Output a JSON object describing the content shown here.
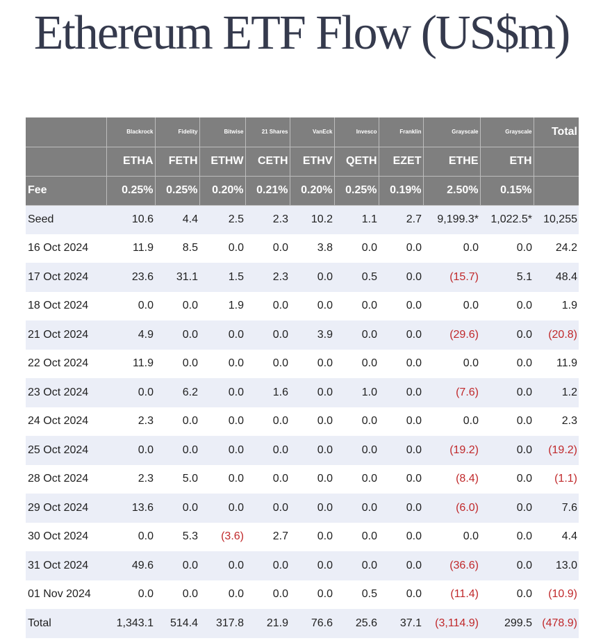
{
  "title": "Ethereum ETF Flow (US$m)",
  "header": {
    "issuers": [
      "Blackrock",
      "Fidelity",
      "Bitwise",
      "21 Shares",
      "VanEck",
      "Invesco",
      "Franklin",
      "Grayscale",
      "Grayscale"
    ],
    "total_label": "Total",
    "tickers": [
      "ETHA",
      "FETH",
      "ETHW",
      "CETH",
      "ETHV",
      "QETH",
      "EZET",
      "ETHE",
      "ETH"
    ],
    "fee_label": "Fee",
    "fees": [
      "0.25%",
      "0.25%",
      "0.20%",
      "0.21%",
      "0.20%",
      "0.25%",
      "0.19%",
      "2.50%",
      "0.15%"
    ]
  },
  "rows": [
    {
      "label": "Seed",
      "values": [
        "10.6",
        "4.4",
        "2.5",
        "2.3",
        "10.2",
        "1.1",
        "2.7",
        "9,199.3*",
        "1,022.5*",
        "10,255"
      ]
    },
    {
      "label": "16 Oct 2024",
      "values": [
        "11.9",
        "8.5",
        "0.0",
        "0.0",
        "3.8",
        "0.0",
        "0.0",
        "0.0",
        "0.0",
        "24.2"
      ]
    },
    {
      "label": "17 Oct 2024",
      "values": [
        "23.6",
        "31.1",
        "1.5",
        "2.3",
        "0.0",
        "0.5",
        "0.0",
        "(15.7)",
        "5.1",
        "48.4"
      ]
    },
    {
      "label": "18 Oct 2024",
      "values": [
        "0.0",
        "0.0",
        "1.9",
        "0.0",
        "0.0",
        "0.0",
        "0.0",
        "0.0",
        "0.0",
        "1.9"
      ]
    },
    {
      "label": "21 Oct 2024",
      "values": [
        "4.9",
        "0.0",
        "0.0",
        "0.0",
        "3.9",
        "0.0",
        "0.0",
        "(29.6)",
        "0.0",
        "(20.8)"
      ]
    },
    {
      "label": "22 Oct 2024",
      "values": [
        "11.9",
        "0.0",
        "0.0",
        "0.0",
        "0.0",
        "0.0",
        "0.0",
        "0.0",
        "0.0",
        "11.9"
      ]
    },
    {
      "label": "23 Oct 2024",
      "values": [
        "0.0",
        "6.2",
        "0.0",
        "1.6",
        "0.0",
        "1.0",
        "0.0",
        "(7.6)",
        "0.0",
        "1.2"
      ]
    },
    {
      "label": "24 Oct 2024",
      "values": [
        "2.3",
        "0.0",
        "0.0",
        "0.0",
        "0.0",
        "0.0",
        "0.0",
        "0.0",
        "0.0",
        "2.3"
      ]
    },
    {
      "label": "25 Oct 2024",
      "values": [
        "0.0",
        "0.0",
        "0.0",
        "0.0",
        "0.0",
        "0.0",
        "0.0",
        "(19.2)",
        "0.0",
        "(19.2)"
      ]
    },
    {
      "label": "28 Oct 2024",
      "values": [
        "2.3",
        "5.0",
        "0.0",
        "0.0",
        "0.0",
        "0.0",
        "0.0",
        "(8.4)",
        "0.0",
        "(1.1)"
      ]
    },
    {
      "label": "29 Oct 2024",
      "values": [
        "13.6",
        "0.0",
        "0.0",
        "0.0",
        "0.0",
        "0.0",
        "0.0",
        "(6.0)",
        "0.0",
        "7.6"
      ]
    },
    {
      "label": "30 Oct 2024",
      "values": [
        "0.0",
        "5.3",
        "(3.6)",
        "2.7",
        "0.0",
        "0.0",
        "0.0",
        "0.0",
        "0.0",
        "4.4"
      ]
    },
    {
      "label": "31 Oct 2024",
      "values": [
        "49.6",
        "0.0",
        "0.0",
        "0.0",
        "0.0",
        "0.0",
        "0.0",
        "(36.6)",
        "0.0",
        "13.0"
      ]
    },
    {
      "label": "01 Nov 2024",
      "values": [
        "0.0",
        "0.0",
        "0.0",
        "0.0",
        "0.0",
        "0.5",
        "0.0",
        "(11.4)",
        "0.0",
        "(10.9)"
      ]
    },
    {
      "label": "Total",
      "values": [
        "1,343.1",
        "514.4",
        "317.8",
        "21.9",
        "76.6",
        "25.6",
        "37.1",
        "(3,114.9)",
        "299.5",
        "(478.9)"
      ]
    }
  ],
  "colors": {
    "header_bg": "#7f7f7f",
    "row_stripe": "#ebeef7",
    "negative": "#c0282a",
    "title": "#353a4d"
  }
}
